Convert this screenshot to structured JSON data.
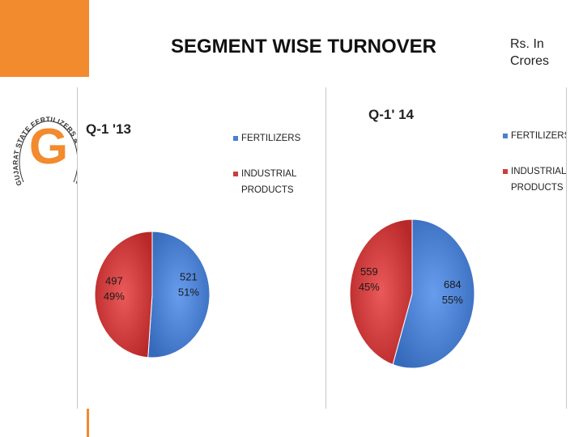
{
  "header": {
    "title": "SEGMENT WISE TURNOVER",
    "units_line1": "Rs. In",
    "units_line2": "Crores"
  },
  "logo": {
    "text": "GUJARAT STATE FERTILIZERS & CHEMICALS LIMITED",
    "letter": "G"
  },
  "colors": {
    "accent": "#f28a2e",
    "fertilizers": "#4a7fd0",
    "industrial": "#cc3c3c"
  },
  "chart_data": [
    {
      "type": "pie",
      "title": "Q-1 '13",
      "legend_position": "top-right",
      "slices": [
        {
          "name": "FERTILIZERS",
          "value": 521,
          "percent": "51%",
          "label_line1": "521",
          "label_line2": "51%",
          "color": "#4a7fd0"
        },
        {
          "name": "INDUSTRIAL PRODUCTS",
          "value": 497,
          "percent": "49%",
          "label_line1": "497",
          "label_line2": "49%",
          "color": "#cc3c3c"
        }
      ],
      "legend": [
        {
          "line1": "FERTILIZERS",
          "line2": "",
          "color": "#4a7fd0"
        },
        {
          "line1": "INDUSTRIAL",
          "line2": "PRODUCTS",
          "color": "#cc3c3c"
        }
      ]
    },
    {
      "type": "pie",
      "title": "Q-1' 14",
      "legend_position": "top-right",
      "slices": [
        {
          "name": "FERTILIZERS",
          "value": 684,
          "percent": "55%",
          "label_line1": "684",
          "label_line2": "55%",
          "color": "#4a7fd0"
        },
        {
          "name": "INDUSTRIAL PRODUCTS",
          "value": 559,
          "percent": "45%",
          "label_line1": "559",
          "label_line2": "45%",
          "color": "#cc3c3c"
        }
      ],
      "legend": [
        {
          "line1": "FERTILIZERS",
          "line2": "",
          "color": "#4a7fd0"
        },
        {
          "line1": "INDUSTRIAL",
          "line2": "PRODUCTS",
          "color": "#cc3c3c"
        }
      ]
    }
  ]
}
